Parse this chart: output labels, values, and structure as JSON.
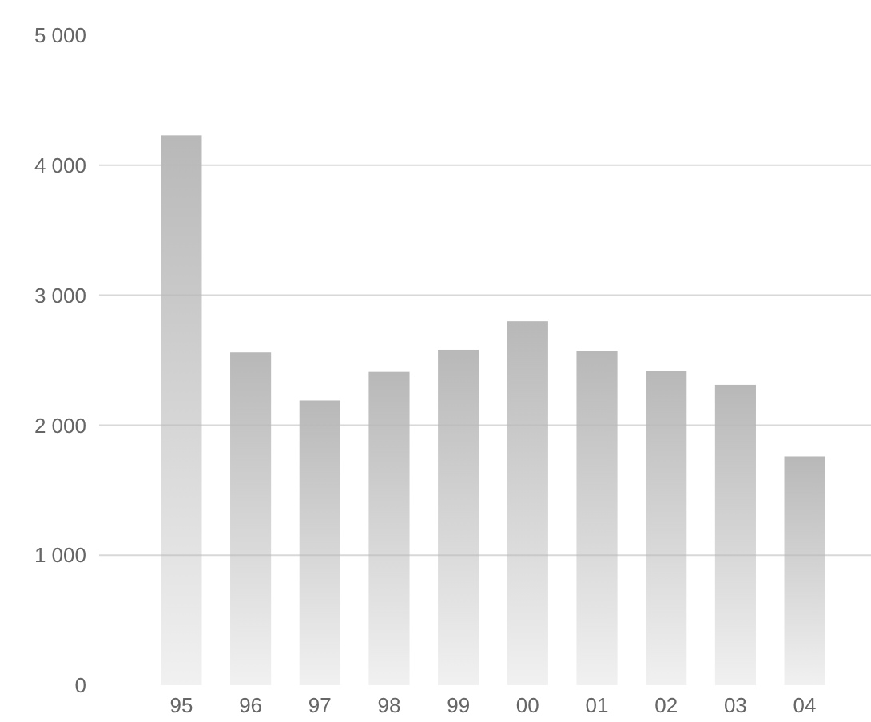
{
  "chart_data": {
    "type": "bar",
    "categories": [
      "95",
      "96",
      "97",
      "98",
      "99",
      "00",
      "01",
      "02",
      "03",
      "04"
    ],
    "values": [
      4230,
      2560,
      2190,
      2410,
      2580,
      2800,
      2570,
      2420,
      2310,
      1760
    ],
    "color": "#b8b8b8",
    "ylim": [
      0,
      5000
    ],
    "yticks": [
      {
        "value": 0,
        "label": "0"
      },
      {
        "value": 1000,
        "label": "1 000"
      },
      {
        "value": 2000,
        "label": "2 000"
      },
      {
        "value": 3000,
        "label": "3 000"
      },
      {
        "value": 4000,
        "label": "4 000"
      },
      {
        "value": 5000,
        "label": "5 000"
      }
    ],
    "grid": "y"
  }
}
